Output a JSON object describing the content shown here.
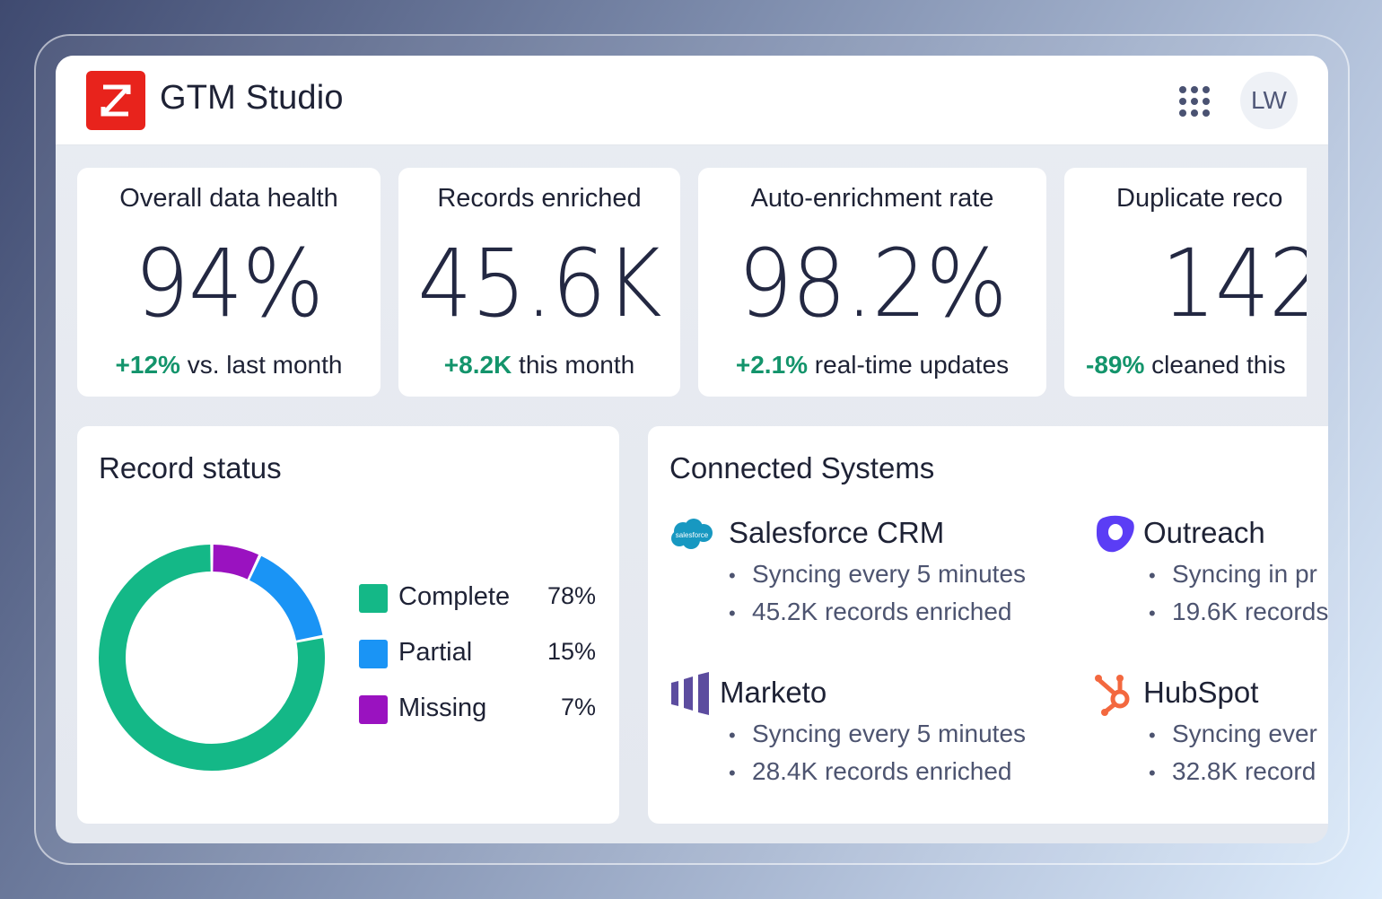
{
  "app": {
    "title": "GTM Studio",
    "brand_color": "#e8231c",
    "user_initials": "LW"
  },
  "icons": {
    "logo": "zoominfo-z-logo",
    "apps": "grid-dots-icon"
  },
  "stats": [
    {
      "label": "Overall data health",
      "value": "94%",
      "delta": "+12%",
      "delta_text": " vs. last month"
    },
    {
      "label": "Records enriched",
      "value": "45.6K",
      "delta": "+8.2K",
      "delta_text": " this month"
    },
    {
      "label": "Auto-enrichment rate",
      "value": "98.2%",
      "delta": "+2.1%",
      "delta_text": " real-time updates"
    },
    {
      "label": "Duplicate reco",
      "value": "142",
      "delta": "-89%",
      "delta_text": " cleaned this"
    }
  ],
  "positive_color": "#13946b",
  "record_status": {
    "title": "Record status",
    "items": [
      {
        "label": "Complete",
        "pct": "78%",
        "value": 78,
        "color": "#14b887"
      },
      {
        "label": "Partial",
        "pct": "15%",
        "value": 15,
        "color": "#1a94f5"
      },
      {
        "label": "Missing",
        "pct": "7%",
        "value": 7,
        "color": "#9a12c0"
      }
    ]
  },
  "connected": {
    "title": "Connected Systems",
    "systems": [
      {
        "name": "Salesforce CRM",
        "icon": "salesforce-icon",
        "icon_text": "salesforce",
        "bullets": [
          "Syncing every 5 minutes",
          "45.2K records enriched"
        ]
      },
      {
        "name": "Outreach",
        "icon": "outreach-icon",
        "bullets": [
          "Syncing in pr",
          "19.6K records"
        ]
      },
      {
        "name": "Marketo",
        "icon": "marketo-icon",
        "bullets": [
          "Syncing every 5 minutes",
          "28.4K records enriched"
        ]
      },
      {
        "name": "HubSpot",
        "icon": "hubspot-icon",
        "bullets": [
          "Syncing ever",
          "32.8K record"
        ]
      }
    ]
  }
}
